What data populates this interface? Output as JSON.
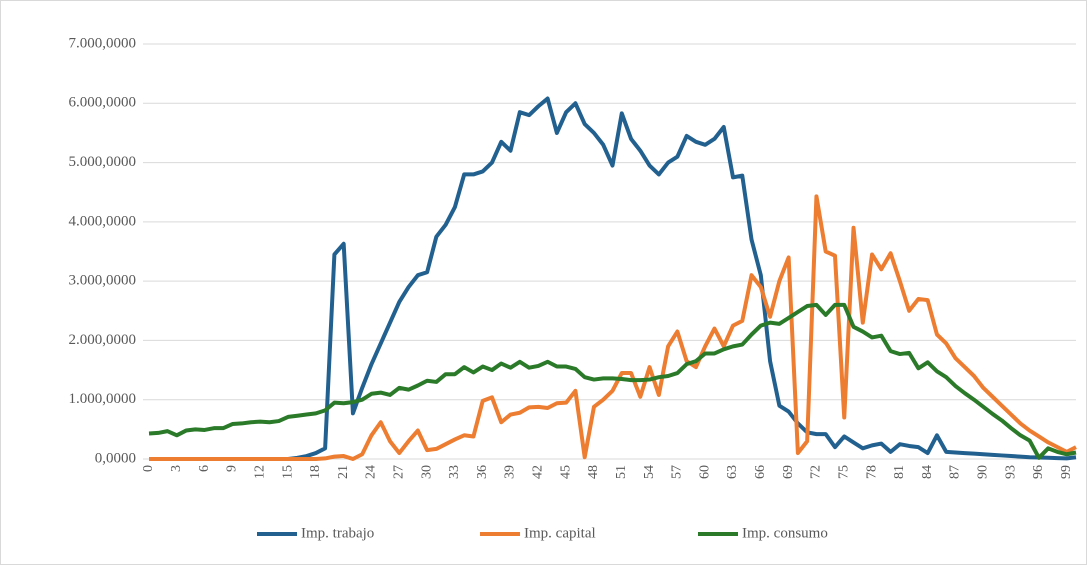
{
  "chart_data": {
    "type": "line",
    "x": [
      0,
      1,
      2,
      3,
      4,
      5,
      6,
      7,
      8,
      9,
      10,
      11,
      12,
      13,
      14,
      15,
      16,
      17,
      18,
      19,
      20,
      21,
      22,
      23,
      24,
      25,
      26,
      27,
      28,
      29,
      30,
      31,
      32,
      33,
      34,
      35,
      36,
      37,
      38,
      39,
      40,
      41,
      42,
      43,
      44,
      45,
      46,
      47,
      48,
      49,
      50,
      51,
      52,
      53,
      54,
      55,
      56,
      57,
      58,
      59,
      60,
      61,
      62,
      63,
      64,
      65,
      66,
      67,
      68,
      69,
      70,
      71,
      72,
      73,
      74,
      75,
      76,
      77,
      78,
      79,
      80,
      81,
      82,
      83,
      84,
      85,
      86,
      87,
      88,
      89,
      90,
      91,
      92,
      93,
      94,
      95,
      96,
      97,
      98,
      99,
      100
    ],
    "xlim": [
      0,
      100
    ],
    "xticks": [
      0,
      3,
      6,
      9,
      12,
      15,
      18,
      21,
      24,
      27,
      30,
      33,
      36,
      39,
      42,
      45,
      48,
      51,
      54,
      57,
      60,
      63,
      66,
      69,
      72,
      75,
      78,
      81,
      84,
      87,
      90,
      93,
      96,
      99
    ],
    "ylim": [
      0,
      7000
    ],
    "yticks": [
      {
        "value": 0,
        "label": "0,0000"
      },
      {
        "value": 1000,
        "label": "1.000,0000"
      },
      {
        "value": 2000,
        "label": "2.000,0000"
      },
      {
        "value": 3000,
        "label": "3.000,0000"
      },
      {
        "value": 4000,
        "label": "4.000,0000"
      },
      {
        "value": 5000,
        "label": "5.000,0000"
      },
      {
        "value": 6000,
        "label": "6.000,0000"
      },
      {
        "value": 7000,
        "label": "7.000,0000"
      }
    ],
    "grid": true,
    "legend": "bottom",
    "series": [
      {
        "name": "Imp. trabajo",
        "color": "#22618f",
        "values": [
          0,
          0,
          0,
          0,
          0,
          0,
          0,
          0,
          0,
          0,
          0,
          0,
          0,
          0,
          0,
          0,
          20,
          50,
          100,
          180,
          3450,
          3630,
          770,
          1200,
          1600,
          1950,
          2300,
          2650,
          2900,
          3100,
          3150,
          3750,
          3950,
          4250,
          4800,
          4800,
          4850,
          5000,
          5350,
          5200,
          5850,
          5800,
          5950,
          6080,
          5500,
          5850,
          6000,
          5650,
          5500,
          5300,
          4950,
          5830,
          5400,
          5200,
          4950,
          4800,
          5000,
          5100,
          5450,
          5350,
          5300,
          5400,
          5600,
          4750,
          4780,
          3700,
          3100,
          1650,
          900,
          800,
          600,
          450,
          420,
          420,
          200,
          380,
          280,
          180,
          230,
          260,
          120,
          250,
          220,
          200,
          100,
          400,
          120,
          110,
          100,
          90,
          80,
          70,
          60,
          50,
          40,
          30,
          25,
          20,
          15,
          10,
          30
        ]
      },
      {
        "name": "Imp. capital",
        "color": "#ed7d31",
        "values": [
          0,
          0,
          0,
          0,
          0,
          0,
          0,
          0,
          0,
          0,
          0,
          0,
          0,
          0,
          0,
          0,
          0,
          0,
          0,
          10,
          40,
          50,
          0,
          80,
          400,
          620,
          300,
          100,
          300,
          480,
          150,
          170,
          250,
          330,
          400,
          380,
          980,
          1040,
          620,
          750,
          780,
          870,
          880,
          860,
          940,
          950,
          1150,
          30,
          880,
          1000,
          1150,
          1450,
          1450,
          1050,
          1550,
          1080,
          1900,
          2150,
          1650,
          1550,
          1900,
          2200,
          1900,
          2250,
          2330,
          3100,
          2900,
          2400,
          3000,
          3400,
          100,
          300,
          4430,
          3500,
          3430,
          700,
          3900,
          2300,
          3450,
          3200,
          3470,
          3000,
          2500,
          2700,
          2680,
          2100,
          1950,
          1700,
          1550,
          1400,
          1200,
          1050,
          900,
          750,
          600,
          480,
          380,
          280,
          200,
          120,
          200
        ]
      },
      {
        "name": "Imp. consumo",
        "color": "#2a7a2a",
        "values": [
          430,
          440,
          470,
          400,
          480,
          500,
          490,
          520,
          520,
          590,
          600,
          620,
          630,
          620,
          640,
          710,
          730,
          750,
          770,
          820,
          950,
          940,
          960,
          1000,
          1100,
          1120,
          1080,
          1200,
          1170,
          1240,
          1320,
          1300,
          1430,
          1430,
          1550,
          1460,
          1560,
          1500,
          1610,
          1540,
          1640,
          1540,
          1570,
          1640,
          1560,
          1560,
          1520,
          1380,
          1340,
          1360,
          1360,
          1350,
          1330,
          1330,
          1340,
          1380,
          1400,
          1450,
          1600,
          1650,
          1780,
          1780,
          1850,
          1900,
          1930,
          2100,
          2250,
          2300,
          2280,
          2380,
          2480,
          2580,
          2600,
          2430,
          2600,
          2600,
          2230,
          2150,
          2050,
          2080,
          1820,
          1770,
          1790,
          1530,
          1630,
          1480,
          1380,
          1230,
          1110,
          1000,
          880,
          760,
          650,
          520,
          400,
          310,
          20,
          180,
          120,
          80,
          110
        ]
      }
    ]
  }
}
